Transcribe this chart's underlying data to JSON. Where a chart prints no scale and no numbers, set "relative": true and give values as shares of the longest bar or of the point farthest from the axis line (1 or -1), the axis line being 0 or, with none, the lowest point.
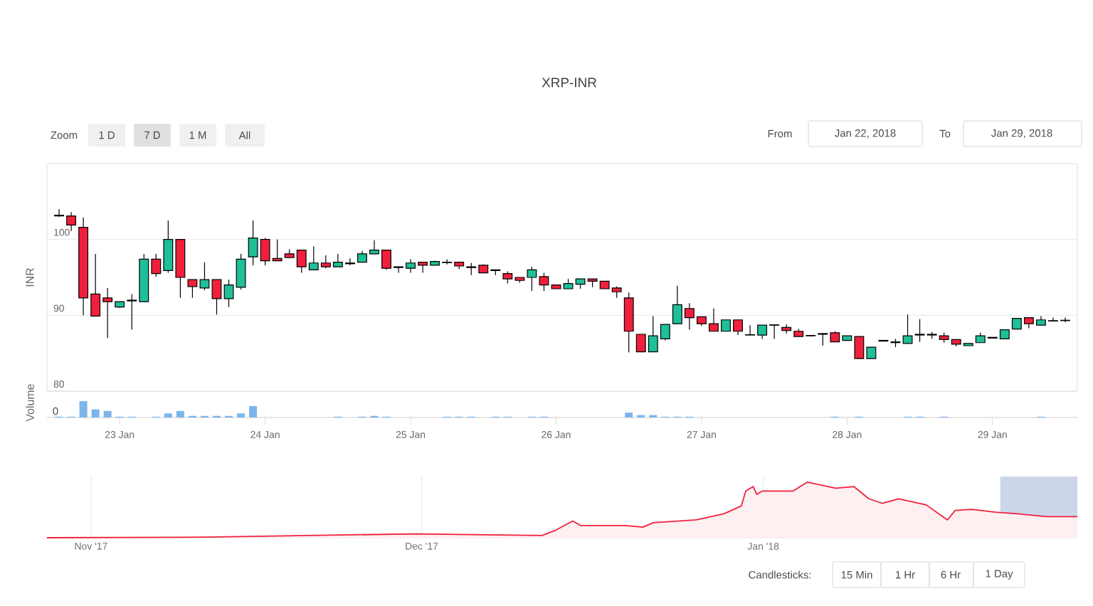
{
  "chart_data": [
    {
      "type": "candlestick",
      "title": "XRP-INR",
      "ylabel": "INR",
      "x": [
        "2018-01-22T14:00",
        "2018-01-22T16:00",
        "2018-01-22T18:00",
        "2018-01-22T20:00",
        "2018-01-22T22:00",
        "2018-01-23T00:00",
        "2018-01-23T02:00",
        "2018-01-23T04:00",
        "2018-01-23T06:00",
        "2018-01-23T08:00",
        "2018-01-23T10:00",
        "2018-01-23T12:00",
        "2018-01-23T14:00",
        "2018-01-23T16:00",
        "2018-01-23T18:00",
        "2018-01-23T20:00",
        "2018-01-23T22:00",
        "2018-01-24T00:00",
        "2018-01-24T02:00",
        "2018-01-24T04:00",
        "2018-01-24T06:00",
        "2018-01-24T08:00",
        "2018-01-24T10:00",
        "2018-01-24T12:00",
        "2018-01-24T14:00",
        "2018-01-24T16:00",
        "2018-01-24T18:00",
        "2018-01-24T20:00",
        "2018-01-24T22:00",
        "2018-01-25T00:00",
        "2018-01-25T02:00",
        "2018-01-25T04:00",
        "2018-01-25T06:00",
        "2018-01-25T08:00",
        "2018-01-25T10:00",
        "2018-01-25T12:00",
        "2018-01-25T14:00",
        "2018-01-25T16:00",
        "2018-01-25T18:00",
        "2018-01-25T20:00",
        "2018-01-25T22:00",
        "2018-01-26T00:00",
        "2018-01-26T02:00",
        "2018-01-26T04:00",
        "2018-01-26T06:00",
        "2018-01-26T08:00",
        "2018-01-26T10:00",
        "2018-01-26T12:00",
        "2018-01-26T14:00",
        "2018-01-26T16:00",
        "2018-01-26T18:00",
        "2018-01-26T20:00",
        "2018-01-26T22:00",
        "2018-01-27T00:00",
        "2018-01-27T02:00",
        "2018-01-27T04:00",
        "2018-01-27T06:00",
        "2018-01-27T08:00",
        "2018-01-27T10:00",
        "2018-01-27T12:00",
        "2018-01-27T14:00",
        "2018-01-27T16:00",
        "2018-01-27T18:00",
        "2018-01-27T20:00",
        "2018-01-27T22:00",
        "2018-01-28T00:00",
        "2018-01-28T02:00",
        "2018-01-28T04:00",
        "2018-01-28T06:00",
        "2018-01-28T08:00",
        "2018-01-28T10:00",
        "2018-01-28T12:00",
        "2018-01-28T14:00",
        "2018-01-28T16:00",
        "2018-01-28T18:00",
        "2018-01-28T20:00",
        "2018-01-28T22:00",
        "2018-01-29T00:00",
        "2018-01-29T02:00",
        "2018-01-29T04:00",
        "2018-01-29T06:00",
        "2018-01-29T08:00",
        "2018-01-29T10:00",
        "2018-01-29T12:00"
      ],
      "ohlc": [
        [
          103.1,
          104,
          103,
          103.2
        ],
        [
          103.1,
          103.6,
          101.1,
          101.9
        ],
        [
          101.6,
          102.9,
          90,
          92.3
        ],
        [
          92.8,
          98.1,
          89.9,
          89.9
        ],
        [
          92.3,
          93.6,
          87.0,
          91.8
        ],
        [
          91.1,
          91.8,
          91.0,
          91.8
        ],
        [
          91.9,
          92.8,
          88.1,
          92.0
        ],
        [
          91.8,
          98.1,
          91.8,
          97.4
        ],
        [
          97.4,
          98.1,
          95.1,
          95.5
        ],
        [
          95.9,
          102.5,
          95.6,
          100
        ],
        [
          100,
          100,
          92.3,
          95
        ],
        [
          94.7,
          94.7,
          92.3,
          93.8
        ],
        [
          93.6,
          97.0,
          93.3,
          94.7
        ],
        [
          94.7,
          94.7,
          90.1,
          92.2
        ],
        [
          92.2,
          94.7,
          91.1,
          94.0
        ],
        [
          93.7,
          98.1,
          93.4,
          97.4
        ],
        [
          97.7,
          102.5,
          96.6,
          100.2
        ],
        [
          100,
          100.2,
          96.6,
          97.2
        ],
        [
          97.5,
          100,
          97.2,
          97.2
        ],
        [
          98.1,
          98.7,
          97.6,
          97.6
        ],
        [
          98.6,
          98.6,
          95.6,
          96.4
        ],
        [
          96.0,
          99.1,
          96.0,
          96.9
        ],
        [
          96.9,
          97.9,
          96.2,
          96.4
        ],
        [
          96.4,
          98.1,
          96.4,
          97.0
        ],
        [
          96.8,
          97.5,
          96.6,
          96.9
        ],
        [
          97.0,
          98.5,
          97.0,
          98.1
        ],
        [
          98.1,
          99.9,
          98.1,
          98.6
        ],
        [
          98.6,
          98.6,
          96.0,
          96.2
        ],
        [
          96.4,
          96.4,
          95.6,
          96.3
        ],
        [
          96.2,
          97.4,
          95.6,
          96.9
        ],
        [
          97.0,
          97.0,
          95.6,
          96.6
        ],
        [
          96.6,
          97.2,
          96.6,
          97.1
        ],
        [
          96.95,
          97.4,
          96.7,
          97.0
        ],
        [
          97.0,
          97.0,
          96.1,
          96.5
        ],
        [
          96.4,
          96.9,
          95.3,
          96.3
        ],
        [
          96.6,
          96.7,
          95.6,
          95.6
        ],
        [
          96.0,
          96.0,
          95.3,
          95.9
        ],
        [
          95.5,
          95.8,
          94.2,
          94.8
        ],
        [
          95.0,
          95.0,
          94.3,
          94.6
        ],
        [
          95.0,
          96.4,
          93.2,
          96.0
        ],
        [
          95.1,
          95.6,
          93.2,
          94.0
        ],
        [
          94.0,
          94.0,
          93.5,
          93.5
        ],
        [
          93.5,
          94.8,
          93.5,
          94.2
        ],
        [
          94.1,
          94.8,
          93.5,
          94.8
        ],
        [
          94.8,
          94.8,
          93.7,
          94.5
        ],
        [
          94.5,
          94.5,
          93.5,
          93.5
        ],
        [
          93.6,
          93.8,
          92.3,
          93.1
        ],
        [
          92.3,
          93.0,
          85.1,
          87.9
        ],
        [
          87.5,
          87.5,
          85.2,
          85.2
        ],
        [
          85.2,
          89.9,
          85.2,
          87.3
        ],
        [
          86.9,
          88.8,
          86.7,
          88.8
        ],
        [
          88.9,
          93.9,
          88.9,
          91.4
        ],
        [
          90.9,
          91.6,
          88.1,
          89.7
        ],
        [
          89.8,
          89.8,
          88.6,
          88.9
        ],
        [
          88.9,
          90.9,
          87.9,
          87.9
        ],
        [
          87.9,
          89.4,
          87.9,
          89.4
        ],
        [
          89.4,
          89.4,
          87.4,
          87.9
        ],
        [
          87.45,
          88.7,
          87.4,
          87.4
        ],
        [
          87.4,
          88.7,
          86.9,
          88.7
        ],
        [
          88.75,
          88.75,
          86.9,
          88.7
        ],
        [
          88.4,
          88.8,
          87.6,
          88.0
        ],
        [
          87.9,
          88.2,
          87.2,
          87.2
        ],
        [
          87.35,
          87.4,
          87.2,
          87.3
        ],
        [
          87.6,
          87.6,
          86.0,
          87.5
        ],
        [
          87.7,
          87.9,
          86.5,
          86.5
        ],
        [
          86.7,
          87.3,
          86.7,
          87.3
        ],
        [
          87.2,
          87.2,
          84.3,
          84.3
        ],
        [
          84.3,
          85.8,
          84.3,
          85.8
        ],
        [
          86.7,
          86.7,
          86.6,
          86.6
        ],
        [
          86.4,
          86.9,
          85.8,
          86.5
        ],
        [
          86.3,
          90.1,
          86.3,
          87.3
        ],
        [
          87.4,
          89.5,
          86.5,
          87.5
        ],
        [
          87.5,
          87.8,
          86.9,
          87.4
        ],
        [
          87.3,
          87.7,
          86.4,
          86.8
        ],
        [
          86.8,
          86.8,
          85.9,
          86.2
        ],
        [
          86.0,
          86.3,
          86.0,
          86.3
        ],
        [
          86.4,
          87.7,
          86.4,
          87.3
        ],
        [
          87.1,
          87.1,
          87.0,
          87.0
        ],
        [
          86.9,
          88.1,
          86.9,
          88.1
        ],
        [
          88.2,
          89.6,
          88.2,
          89.6
        ],
        [
          89.7,
          89.7,
          88.3,
          88.9
        ],
        [
          88.7,
          89.9,
          88.7,
          89.4
        ],
        [
          89.25,
          89.7,
          89.25,
          89.3
        ],
        [
          89.3,
          89.7,
          89.1,
          89.35
        ]
      ],
      "colors": [
        "#1fbf98",
        "#f0203c",
        "#f0203c",
        "#f0203c",
        "#f0203c",
        "#1fbf98",
        "#1fbf98",
        "#1fbf98",
        "#f0203c",
        "#1fbf98",
        "#f0203c",
        "#f0203c",
        "#1fbf98",
        "#f0203c",
        "#1fbf98",
        "#1fbf98",
        "#1fbf98",
        "#f0203c",
        "#f0203c",
        "#f0203c",
        "#f0203c",
        "#1fbf98",
        "#f0203c",
        "#1fbf98",
        "#1fbf98",
        "#1fbf98",
        "#1fbf98",
        "#f0203c",
        "#f0203c",
        "#1fbf98",
        "#f0203c",
        "#1fbf98",
        "#1fbf98",
        "#f0203c",
        "#f0203c",
        "#f0203c",
        "#f0203c",
        "#f0203c",
        "#f0203c",
        "#1fbf98",
        "#f0203c",
        "#f0203c",
        "#1fbf98",
        "#1fbf98",
        "#f0203c",
        "#f0203c",
        "#f0203c",
        "#f0203c",
        "#f0203c",
        "#1fbf98",
        "#1fbf98",
        "#1fbf98",
        "#f0203c",
        "#f0203c",
        "#f0203c",
        "#1fbf98",
        "#f0203c",
        "#f0203c",
        "#1fbf98",
        "#f0203c",
        "#f0203c",
        "#f0203c",
        "#f0203c",
        "#f0203c",
        "#f0203c",
        "#1fbf98",
        "#f0203c",
        "#1fbf98",
        "#f0203c",
        "#1fbf98",
        "#1fbf98",
        "#1fbf98",
        "#f0203c",
        "#f0203c",
        "#f0203c",
        "#1fbf98",
        "#1fbf98",
        "#f0203c",
        "#1fbf98",
        "#1fbf98",
        "#f0203c",
        "#1fbf98",
        "#1fbf98",
        "#1fbf98"
      ],
      "xlim": [
        "2018-01-22T12:00",
        "2018-01-29T14:00"
      ],
      "ylim": [
        80,
        110
      ],
      "yticks": [
        80,
        90,
        100
      ],
      "grid": "y",
      "tick_labels": "y",
      "annotations": [
        "Zoom",
        "1 D",
        "7 D",
        "1 M",
        "All",
        "From",
        "Jan 22, 2018",
        "To",
        "Jan 29, 2018",
        "Candlesticks:",
        "15 Min",
        "1 Hr",
        "6 Hr",
        "1 Day"
      ]
    },
    {
      "type": "bar",
      "ylabel": "Volume",
      "relative": true,
      "color": "#7cb5ec",
      "x": [
        "2018-01-22T14:00",
        "2018-01-22T16:00",
        "2018-01-22T18:00",
        "2018-01-22T20:00",
        "2018-01-22T22:00",
        "2018-01-23T00:00",
        "2018-01-23T02:00",
        "2018-01-23T04:00",
        "2018-01-23T06:00",
        "2018-01-23T08:00",
        "2018-01-23T10:00",
        "2018-01-23T12:00",
        "2018-01-23T14:00",
        "2018-01-23T16:00",
        "2018-01-23T18:00",
        "2018-01-23T20:00",
        "2018-01-23T22:00",
        "2018-01-24T00:00",
        "2018-01-24T02:00",
        "2018-01-24T04:00",
        "2018-01-24T06:00",
        "2018-01-24T08:00",
        "2018-01-24T10:00",
        "2018-01-24T12:00",
        "2018-01-24T14:00",
        "2018-01-24T16:00",
        "2018-01-24T18:00",
        "2018-01-24T20:00",
        "2018-01-24T22:00",
        "2018-01-25T00:00",
        "2018-01-25T02:00",
        "2018-01-25T04:00",
        "2018-01-25T06:00",
        "2018-01-25T08:00",
        "2018-01-25T10:00",
        "2018-01-25T12:00",
        "2018-01-25T14:00",
        "2018-01-25T16:00",
        "2018-01-25T18:00",
        "2018-01-25T20:00",
        "2018-01-25T22:00",
        "2018-01-26T00:00",
        "2018-01-26T02:00",
        "2018-01-26T04:00",
        "2018-01-26T06:00",
        "2018-01-26T08:00",
        "2018-01-26T10:00",
        "2018-01-26T12:00",
        "2018-01-26T14:00",
        "2018-01-26T16:00",
        "2018-01-26T18:00",
        "2018-01-26T20:00",
        "2018-01-26T22:00",
        "2018-01-27T00:00",
        "2018-01-27T02:00",
        "2018-01-27T04:00",
        "2018-01-27T06:00",
        "2018-01-27T08:00",
        "2018-01-27T10:00",
        "2018-01-27T12:00",
        "2018-01-27T14:00",
        "2018-01-27T16:00",
        "2018-01-27T18:00",
        "2018-01-27T20:00",
        "2018-01-27T22:00",
        "2018-01-28T00:00",
        "2018-01-28T02:00",
        "2018-01-28T04:00",
        "2018-01-28T06:00",
        "2018-01-28T08:00",
        "2018-01-28T10:00",
        "2018-01-28T12:00",
        "2018-01-28T14:00",
        "2018-01-28T16:00",
        "2018-01-28T18:00",
        "2018-01-28T20:00",
        "2018-01-28T22:00",
        "2018-01-29T00:00",
        "2018-01-29T02:00",
        "2018-01-29T04:00",
        "2018-01-29T06:00",
        "2018-01-29T08:00",
        "2018-01-29T10:00",
        "2018-01-29T12:00"
      ],
      "values": [
        0.05,
        0.05,
        1,
        0.5,
        0.4,
        0.05,
        0.05,
        0,
        0.05,
        0.25,
        0.4,
        0.1,
        0.1,
        0.1,
        0.1,
        0.25,
        0.7,
        0,
        0,
        0,
        0,
        0,
        0,
        0.05,
        0,
        0.05,
        0.1,
        0.05,
        0,
        0,
        0,
        0,
        0.05,
        0.05,
        0.05,
        0,
        0.05,
        0.05,
        0,
        0.05,
        0.05,
        0,
        0,
        0,
        0,
        0,
        0,
        0.3,
        0.15,
        0.15,
        0.05,
        0.05,
        0.05,
        0,
        0,
        0,
        0,
        0,
        0,
        0,
        0,
        0,
        0,
        0,
        0.05,
        0,
        0.05,
        0,
        0,
        0,
        0.05,
        0.05,
        0,
        0.05,
        0,
        0,
        0,
        0,
        0,
        0,
        0,
        0.05,
        0,
        0
      ],
      "xlim": [
        "2018-01-22T12:00",
        "2018-01-29T14:00"
      ],
      "xticks": [
        {
          "value": "2018-01-23",
          "label": "23 Jan"
        },
        {
          "value": "2018-01-24",
          "label": "24 Jan"
        },
        {
          "value": "2018-01-25",
          "label": "25 Jan"
        },
        {
          "value": "2018-01-26",
          "label": "26 Jan"
        },
        {
          "value": "2018-01-27",
          "label": "27 Jan"
        },
        {
          "value": "2018-01-28",
          "label": "28 Jan"
        },
        {
          "value": "2018-01-29",
          "label": "29 Jan"
        }
      ],
      "tick_labels": "x",
      "annotations": [
        "0"
      ]
    },
    {
      "type": "area",
      "relative": true,
      "color": "#f0203c",
      "x": [
        "2017-10-28",
        "2017-11-11T14:00",
        "2017-11-30T12:00",
        "2017-12-11T22:00",
        "2017-12-13T05:00",
        "2017-12-14T17:00",
        "2017-12-15T10:00",
        "2017-12-19T12:00",
        "2017-12-21T02:00",
        "2017-12-22",
        "2017-12-25T22:00",
        "2017-12-28T10:00",
        "2017-12-30",
        "2017-12-30T10:00",
        "2017-12-31T02:00",
        "2017-12-31T10:00",
        "2017-12-31T22:00",
        "2018-01-03T17:00",
        "2018-01-05",
        "2018-01-07T14:00",
        "2018-01-09T05:00",
        "2018-01-10T14:00",
        "2018-01-11T19:00",
        "2018-01-13T07:00",
        "2018-01-15T19:00",
        "2018-01-17T17:00",
        "2018-01-18T10:00",
        "2018-01-19T22:00",
        "2018-01-22T02:00",
        "2018-01-24T02:00",
        "2018-01-26T17:00",
        "2018-01-29T12:00"
      ],
      "values": [
        0,
        0.01,
        0.07,
        0.04,
        0.14,
        0.3,
        0.22,
        0.22,
        0.19,
        0.27,
        0.32,
        0.43,
        0.57,
        0.84,
        0.92,
        0.78,
        0.84,
        0.84,
        1,
        0.89,
        0.92,
        0.7,
        0.62,
        0.7,
        0.59,
        0.32,
        0.49,
        0.51,
        0.46,
        0.43,
        0.38,
        0.38
      ],
      "xlim": [
        "2017-10-28",
        "2018-01-29T12:00"
      ],
      "xticks": [
        {
          "value": "2017-11-01",
          "label": "Nov '17"
        },
        {
          "value": "2017-12-01",
          "label": "Dec '17"
        },
        {
          "value": "2018-01-01",
          "label": "Jan '18"
        }
      ],
      "grid": "x",
      "tick_labels": "x",
      "bands": [
        {
          "axis": "x",
          "from": "2018-01-22T12:00",
          "to": "2018-01-29T12:00",
          "color": "#ccd6eb"
        }
      ]
    }
  ]
}
